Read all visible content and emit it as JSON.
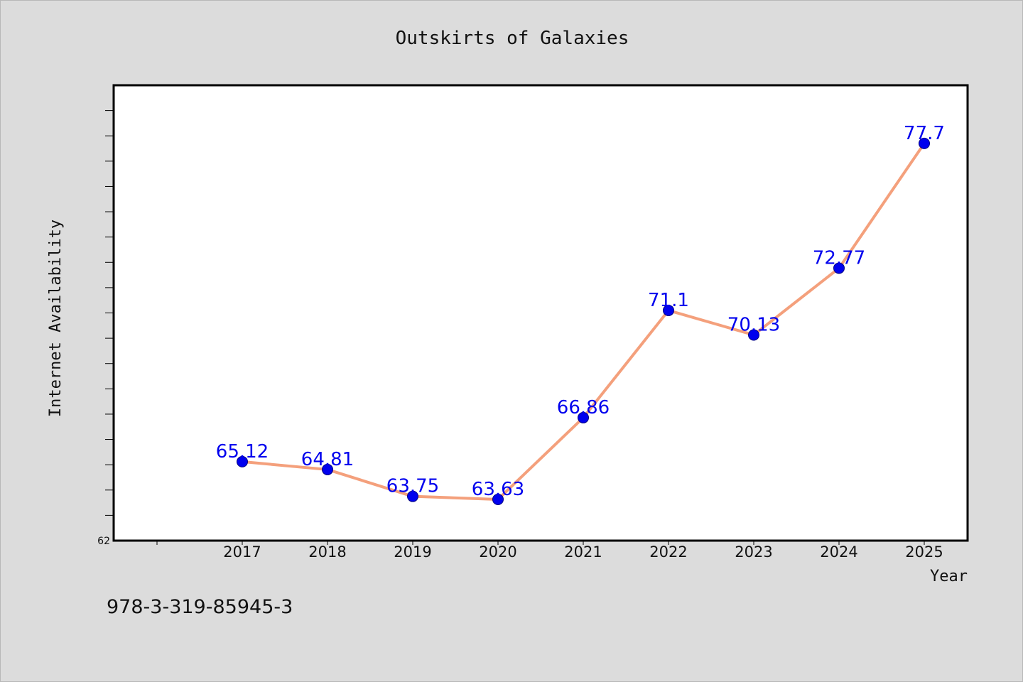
{
  "chart_data": {
    "type": "line",
    "title": "Outskirts of Galaxies",
    "xlabel": "Year",
    "ylabel": "Internet Availability",
    "categories": [
      "2017",
      "2018",
      "2019",
      "2020",
      "2021",
      "2022",
      "2023",
      "2024",
      "2025"
    ],
    "series": [
      {
        "values": [
          65.12,
          64.81,
          63.75,
          63.63,
          66.86,
          71.1,
          70.13,
          72.77,
          77.7
        ]
      }
    ],
    "data_labels": [
      "65.12",
      "64.81",
      "63.75",
      "63.63",
      "66.86",
      "71.1",
      "70.13",
      "72.77",
      "77.7"
    ],
    "y_tick_labels": [
      "62"
    ],
    "ylim": [
      62,
      80
    ],
    "grid": false,
    "legend": "none",
    "colors": {
      "line": "#f4a07c",
      "marker": "#0000ee",
      "marker_edge": "#000080",
      "data_label": "#0000ee",
      "plot_background": "#ffffff",
      "page_background": "#dcdcdc"
    }
  },
  "footnote": "978-3-319-85945-3"
}
